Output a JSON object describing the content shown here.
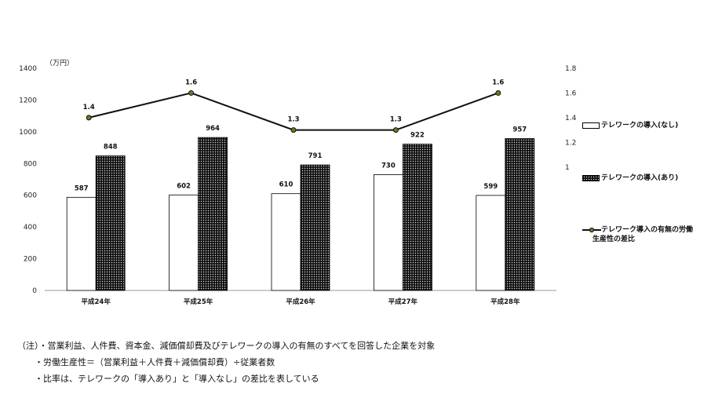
{
  "chart_data": {
    "type": "bar",
    "categories": [
      "平成24年",
      "平成25年",
      "平成26年",
      "平成27年",
      "平成28年"
    ],
    "series": [
      {
        "name": "テレワークの導入(なし)",
        "type": "bar",
        "axis": "left",
        "fill": "white",
        "values": [
          587,
          602,
          610,
          730,
          599
        ]
      },
      {
        "name": "テレワークの導入(あり)",
        "type": "bar",
        "axis": "left",
        "fill": "dark-dotted",
        "values": [
          848,
          964,
          791,
          922,
          957
        ]
      },
      {
        "name": "テレワーク導入の有無の労働生産性の差比",
        "type": "line",
        "axis": "right",
        "values": [
          1.4,
          1.6,
          1.3,
          1.3,
          1.6
        ],
        "display_values": [
          "1.4",
          "1.6",
          "1.3",
          "1.3",
          "1.6"
        ]
      }
    ],
    "y_unit": "（万円）",
    "ylim": [
      0,
      1400
    ],
    "yticks": [
      0,
      200,
      400,
      600,
      800,
      1000,
      1200,
      1400
    ],
    "y2lim": [
      0,
      1.8
    ],
    "y2ticks": [
      "1",
      "1.2",
      "1.4",
      "1.6",
      "1.8"
    ],
    "legend_position": "right",
    "grid": false
  },
  "legend": {
    "item1": "テレワークの導入(なし)",
    "item2": "テレワークの導入(あり)",
    "item3_line1": "テレワーク導入の有無の労働",
    "item3_line2": "生産性の差比"
  },
  "notes": [
    "（注）・営業利益、人件費、資本金、減価償却費及びテレワークの導入の有無のすべてを回答した企業を対象",
    "・労働生産性＝（営業利益＋人件費＋減価償却費）÷従業者数",
    "・比率は、テレワークの「導入あり」と「導入なし」の差比を表している"
  ],
  "colors": {
    "bar_outline": "#000000",
    "bar_dark": "#111111",
    "line": "#111111",
    "marker": "#6b7a1f"
  }
}
